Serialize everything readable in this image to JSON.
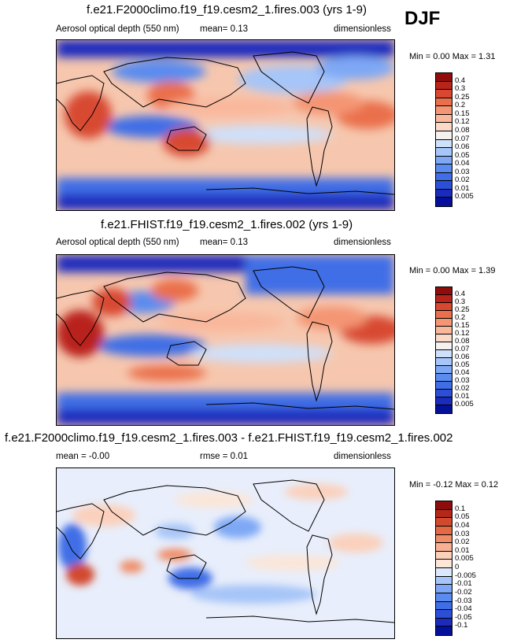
{
  "season_label": "DJF",
  "panels": [
    {
      "title": "f.e21.F2000climo.f19_f19.cesm2_1.fires.003 (yrs 1-9)",
      "left_label": "Aerosol optical depth (550 nm)",
      "center_label": "mean=  0.13",
      "right_label": "dimensionless",
      "minmax_label": "Min =  0.00 Max =  1.31"
    },
    {
      "title": "f.e21.FHIST.f19_f19.cesm2_1.fires.002 (yrs 1-9)",
      "left_label": "Aerosol optical depth (550 nm)",
      "center_label": "mean=  0.13",
      "right_label": "dimensionless",
      "minmax_label": "Min =  0.00 Max =  1.39"
    },
    {
      "title": "f.e21.F2000climo.f19_f19.cesm2_1.fires.003 - f.e21.FHIST.f19_f19.cesm2_1.fires.002",
      "left_label": "mean =  -0.00",
      "center_label": "rmse =  0.01",
      "right_label": "dimensionless",
      "minmax_label": "Min = -0.12 Max =  0.12"
    }
  ],
  "chart_data": [
    {
      "type": "heatmap",
      "title": "f.e21.F2000climo.f19_f19.cesm2_1.fires.003 (yrs 1-9)",
      "variable": "Aerosol optical depth (550 nm)",
      "units": "dimensionless",
      "mean": 0.13,
      "min": 0.0,
      "max": 1.31,
      "colorbar": {
        "levels": [
          "0.005",
          "0.01",
          "0.02",
          "0.03",
          "0.04",
          "0.05",
          "0.06",
          "0.07",
          "0.08",
          "0.12",
          "0.15",
          "0.2",
          "0.25",
          "0.3",
          "0.4"
        ],
        "colors": [
          "#05109a",
          "#1b2cbd",
          "#2c4fd8",
          "#3f6ee6",
          "#5a8bef",
          "#7ea8f5",
          "#a6c5f8",
          "#cfe0fa",
          "#f5f1ee",
          "#fbd9c8",
          "#f9b79b",
          "#f49573",
          "#ea6f4b",
          "#d84830",
          "#b9241a",
          "#900d0c"
        ]
      }
    },
    {
      "type": "heatmap",
      "title": "f.e21.FHIST.f19_f19.cesm2_1.fires.002 (yrs 1-9)",
      "variable": "Aerosol optical depth (550 nm)",
      "units": "dimensionless",
      "mean": 0.13,
      "min": 0.0,
      "max": 1.39,
      "colorbar": {
        "levels": [
          "0.005",
          "0.01",
          "0.02",
          "0.03",
          "0.04",
          "0.05",
          "0.06",
          "0.07",
          "0.08",
          "0.12",
          "0.15",
          "0.2",
          "0.25",
          "0.3",
          "0.4"
        ],
        "colors": [
          "#05109a",
          "#1b2cbd",
          "#2c4fd8",
          "#3f6ee6",
          "#5a8bef",
          "#7ea8f5",
          "#a6c5f8",
          "#cfe0fa",
          "#f5f1ee",
          "#fbd9c8",
          "#f9b79b",
          "#f49573",
          "#ea6f4b",
          "#d84830",
          "#b9241a",
          "#900d0c"
        ]
      }
    },
    {
      "type": "heatmap",
      "title": "f.e21.F2000climo.f19_f19.cesm2_1.fires.003 - f.e21.FHIST.f19_f19.cesm2_1.fires.002",
      "units": "dimensionless",
      "mean": -0.0,
      "rmse": 0.01,
      "min": -0.12,
      "max": 0.12,
      "colorbar": {
        "levels": [
          "-0.1",
          "-0.05",
          "-0.04",
          "-0.03",
          "-0.02",
          "-0.01",
          "-0.005",
          "0",
          "0.005",
          "0.01",
          "0.02",
          "0.03",
          "0.04",
          "0.05",
          "0.1"
        ],
        "colors": [
          "#05109a",
          "#1b2cbd",
          "#2c4fd8",
          "#3f6ee6",
          "#5a8bef",
          "#7ea8f5",
          "#a6c5f8",
          "#dce8fb",
          "#fbe6d8",
          "#fbd0bb",
          "#f7b092",
          "#f08d69",
          "#e46a45",
          "#d24a2e",
          "#b4281a",
          "#8c0d0c"
        ]
      }
    }
  ]
}
